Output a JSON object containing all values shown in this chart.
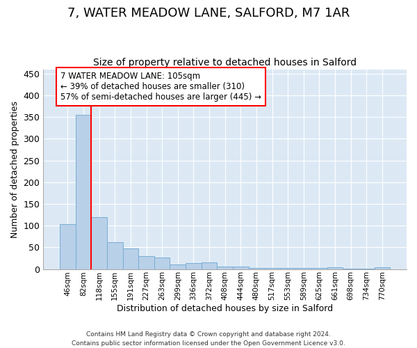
{
  "title": "7, WATER MEADOW LANE, SALFORD, M7 1AR",
  "subtitle": "Size of property relative to detached houses in Salford",
  "xlabel": "Distribution of detached houses by size in Salford",
  "ylabel": "Number of detached properties",
  "bar_labels": [
    "46sqm",
    "82sqm",
    "118sqm",
    "155sqm",
    "191sqm",
    "227sqm",
    "263sqm",
    "299sqm",
    "336sqm",
    "372sqm",
    "408sqm",
    "444sqm",
    "480sqm",
    "517sqm",
    "553sqm",
    "589sqm",
    "625sqm",
    "661sqm",
    "698sqm",
    "734sqm",
    "770sqm"
  ],
  "bar_values": [
    104,
    355,
    120,
    62,
    48,
    30,
    26,
    11,
    14,
    15,
    6,
    6,
    2,
    2,
    2,
    2,
    2,
    4,
    1,
    1,
    4
  ],
  "bar_color": "#b8d0e8",
  "bar_edgecolor": "#7aadd4",
  "background_color": "#dce9f5",
  "red_line_x": 1.5,
  "annotation_text": "7 WATER MEADOW LANE: 105sqm\n← 39% of detached houses are smaller (310)\n57% of semi-detached houses are larger (445) →",
  "annotation_box_color": "white",
  "annotation_box_edgecolor": "red",
  "footer": "Contains HM Land Registry data © Crown copyright and database right 2024.\nContains public sector information licensed under the Open Government Licence v3.0.",
  "ylim": [
    0,
    460
  ],
  "yticks": [
    0,
    50,
    100,
    150,
    200,
    250,
    300,
    350,
    400,
    450
  ],
  "title_fontsize": 13,
  "subtitle_fontsize": 10,
  "annotation_fontsize": 8.5
}
